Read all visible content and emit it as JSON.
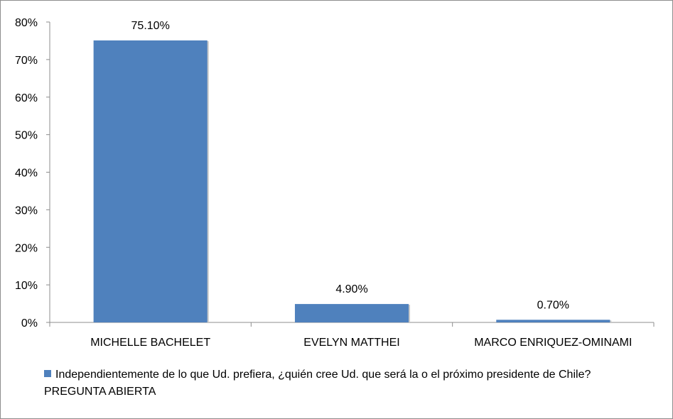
{
  "chart_data": {
    "type": "bar",
    "categories": [
      "MICHELLE BACHELET",
      "EVELYN MATTHEI",
      "MARCO ENRIQUEZ-OMINAMI"
    ],
    "series": [
      {
        "name": "Independientemente de lo que Ud. prefiera, ¿quién cree Ud. que será la o el próximo presidente de Chile? PREGUNTA ABIERTA",
        "values": [
          75.1,
          4.9,
          0.7
        ],
        "labels": [
          "75.10%",
          "4.90%",
          "0.70%"
        ],
        "color": "#4f81bd"
      }
    ],
    "ylim": [
      0,
      80
    ],
    "yticks": [
      0,
      10,
      20,
      30,
      40,
      50,
      60,
      70,
      80
    ],
    "ytick_labels": [
      "0%",
      "10%",
      "20%",
      "30%",
      "40%",
      "50%",
      "60%",
      "70%",
      "80%"
    ],
    "grid": false,
    "legend_position": "bottom-left"
  }
}
